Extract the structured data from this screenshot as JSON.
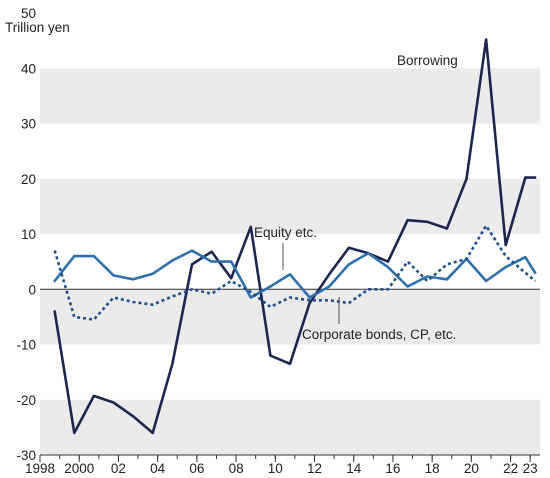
{
  "chart_data": {
    "type": "line",
    "unit_label": "Trillion yen",
    "xlim": [
      1998,
      2023.5
    ],
    "ylim": [
      -30,
      50
    ],
    "grid": "alternating horizontal bands",
    "x_tick_values": [
      1998,
      2000,
      2002,
      2004,
      2006,
      2008,
      2010,
      2012,
      2014,
      2016,
      2018,
      2020,
      2022,
      2023
    ],
    "x_tick_labels": [
      "1998",
      "2000",
      "02",
      "04",
      "06",
      "08",
      "10",
      "12",
      "14",
      "16",
      "18",
      "20",
      "22",
      "23"
    ],
    "y_ticks": [
      -30,
      -20,
      -10,
      0,
      10,
      20,
      30,
      40,
      50
    ],
    "x": [
      1998.75,
      1999.75,
      2000.75,
      2001.75,
      2002.75,
      2003.75,
      2004.75,
      2005.75,
      2006.75,
      2007.75,
      2008.75,
      2009.75,
      2010.75,
      2011.75,
      2012.75,
      2013.75,
      2014.75,
      2015.75,
      2016.75,
      2017.75,
      2018.75,
      2019.75,
      2020.75,
      2021.75,
      2022.75,
      2023.25
    ],
    "series": [
      {
        "name": "Borrowing",
        "color": "#1c2650",
        "dash": "solid",
        "values": [
          -4,
          -26,
          -19.3,
          -20.5,
          -23,
          -26,
          -13.5,
          4.5,
          6.8,
          2,
          11.3,
          -12,
          -13.5,
          -2.5,
          2.7,
          7.5,
          6.5,
          5,
          12.5,
          12.2,
          11,
          20,
          45.2,
          8,
          20.2,
          20.2
        ]
      },
      {
        "name": "Equity etc.",
        "color": "#2e6fb0",
        "dash": "solid",
        "values": [
          1.5,
          6,
          6,
          2.5,
          1.8,
          2.8,
          5.2,
          7,
          5,
          5,
          -1.5,
          0.5,
          2.7,
          -1.5,
          0.5,
          4.5,
          6.5,
          4,
          0.5,
          2.3,
          1.8,
          5.5,
          1.5,
          4,
          5.8,
          3
        ]
      },
      {
        "name": "Corporate bonds, CP, etc.",
        "color": "#1f4f8f",
        "dash": "dotted",
        "values": [
          7,
          -5,
          -5.5,
          -1.5,
          -2.3,
          -2.8,
          -1.3,
          0,
          -0.8,
          1.5,
          -0.5,
          -3.2,
          -1.5,
          -2,
          -2,
          -2.5,
          0,
          0,
          5,
          1.5,
          4.5,
          5.5,
          11.5,
          6,
          3,
          1.5
        ]
      }
    ],
    "annotations": {
      "borrowing": "Borrowing",
      "equity": "Equity etc.",
      "bonds": "Corporate bonds, CP, etc."
    }
  }
}
